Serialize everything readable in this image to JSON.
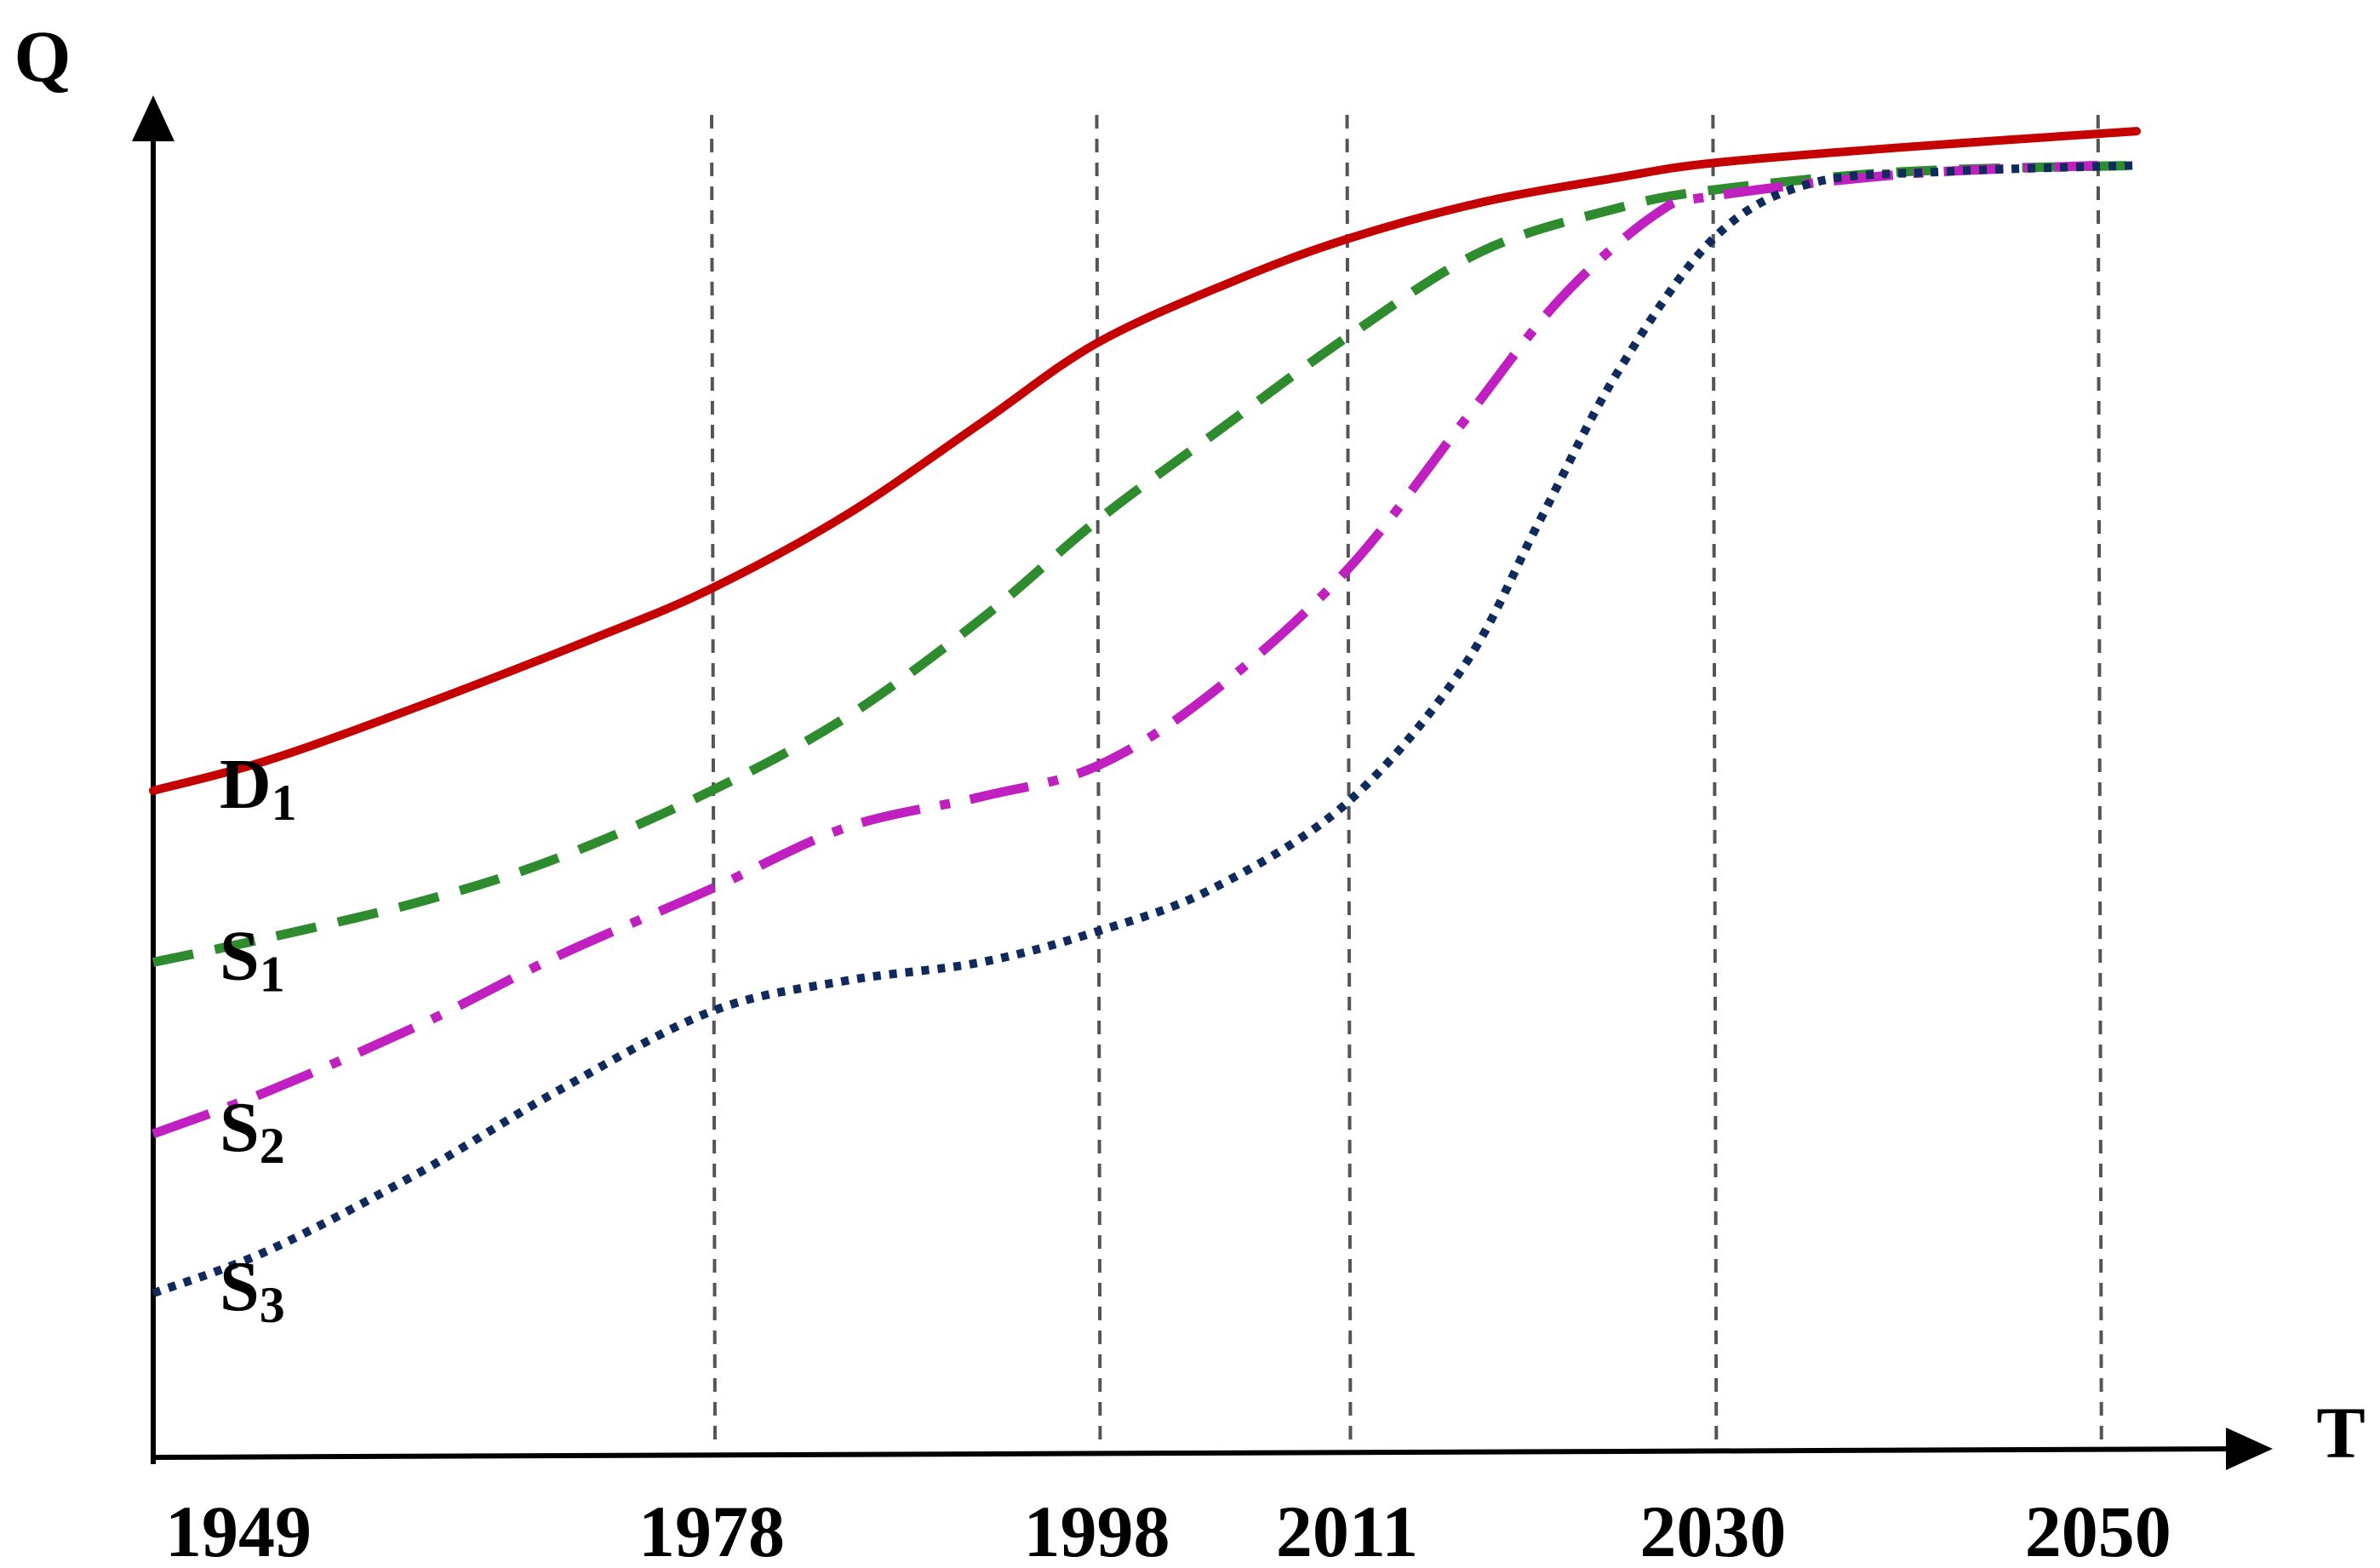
{
  "chart_data": {
    "type": "line",
    "title": "",
    "xlabel": "T",
    "ylabel": "Q",
    "xlim": [
      1949,
      2052
    ],
    "ylim": [
      0,
      100
    ],
    "grid": false,
    "vertical_reference_lines": [
      1978,
      1998,
      2011,
      2030,
      2050
    ],
    "x_tick_labels": [
      "1949",
      "1978",
      "1998",
      "2011",
      "2030",
      "2050"
    ],
    "series": [
      {
        "name": "D1",
        "label_main": "D",
        "label_sub": "1",
        "color": "#c40000",
        "style": "solid",
        "points": [
          [
            1949,
            48
          ],
          [
            1955,
            50.5
          ],
          [
            1963,
            55
          ],
          [
            1972,
            60.5
          ],
          [
            1978,
            64.5
          ],
          [
            1985,
            70.5
          ],
          [
            1992,
            78
          ],
          [
            1998,
            84.5
          ],
          [
            2005,
            89.5
          ],
          [
            2011,
            93
          ],
          [
            2018,
            96
          ],
          [
            2025,
            98
          ],
          [
            2030,
            99.2
          ],
          [
            2040,
            100.5
          ],
          [
            2052,
            101.8
          ]
        ]
      },
      {
        "name": "S1",
        "label_main": "S",
        "label_sub": "1",
        "color": "#2e8b2e",
        "style": "dashed",
        "points": [
          [
            1949,
            34
          ],
          [
            1955,
            36
          ],
          [
            1963,
            39
          ],
          [
            1970,
            42.5
          ],
          [
            1978,
            48
          ],
          [
            1985,
            54
          ],
          [
            1992,
            62
          ],
          [
            1998,
            70
          ],
          [
            2004,
            77
          ],
          [
            2011,
            85
          ],
          [
            2018,
            92
          ],
          [
            2025,
            95.5
          ],
          [
            2030,
            97
          ],
          [
            2040,
            98.5
          ],
          [
            2052,
            99
          ]
        ]
      },
      {
        "name": "S2",
        "label_main": "S",
        "label_sub": "2",
        "color": "#c020c0",
        "style": "dashdot",
        "points": [
          [
            1949,
            20
          ],
          [
            1955,
            23.5
          ],
          [
            1963,
            29
          ],
          [
            1970,
            34.5
          ],
          [
            1978,
            40
          ],
          [
            1985,
            45
          ],
          [
            1992,
            47.5
          ],
          [
            1998,
            50
          ],
          [
            2004,
            56
          ],
          [
            2011,
            66
          ],
          [
            2017,
            78
          ],
          [
            2022,
            88
          ],
          [
            2027,
            95
          ],
          [
            2030,
            96.5
          ],
          [
            2040,
            98.3
          ],
          [
            2050,
            99
          ]
        ]
      },
      {
        "name": "S3",
        "label_main": "S",
        "label_sub": "3",
        "color": "#0f2a5c",
        "style": "dotted",
        "points": [
          [
            1949,
            7
          ],
          [
            1955,
            10.5
          ],
          [
            1963,
            17
          ],
          [
            1970,
            23.5
          ],
          [
            1978,
            30
          ],
          [
            1985,
            32.5
          ],
          [
            1992,
            34
          ],
          [
            1998,
            36.5
          ],
          [
            2004,
            40
          ],
          [
            2011,
            47
          ],
          [
            2017,
            58
          ],
          [
            2021,
            70
          ],
          [
            2025,
            82
          ],
          [
            2030,
            93
          ],
          [
            2035,
            97.5
          ],
          [
            2042,
            98.5
          ],
          [
            2052,
            99
          ]
        ]
      }
    ]
  }
}
